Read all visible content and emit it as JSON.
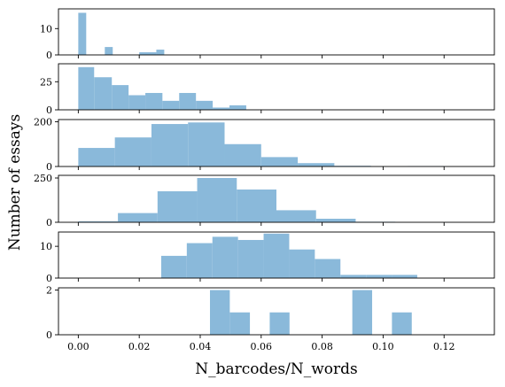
{
  "chart_data": {
    "type": "bar",
    "subtype": "stacked-histogram-panels",
    "xlabel": "N_barcodes/N_words",
    "ylabel": "Number of essays",
    "xlim": [
      -0.0065,
      0.1365
    ],
    "xticks": [
      0.0,
      0.02,
      0.04,
      0.06,
      0.08,
      0.1,
      0.12
    ],
    "xtick_labels": [
      "0.00",
      "0.02",
      "0.04",
      "0.06",
      "0.08",
      "0.10",
      "0.12"
    ],
    "bar_color": "#8ab9da",
    "grid": false,
    "panels": [
      {
        "ylim": [
          0,
          17.5
        ],
        "yticks": [
          0,
          10
        ],
        "bins": [
          {
            "x0": 0.0,
            "x1": 0.0026,
            "count": 16
          },
          {
            "x0": 0.0087,
            "x1": 0.0113,
            "count": 3
          },
          {
            "x0": 0.02,
            "x1": 0.0256,
            "count": 1
          },
          {
            "x0": 0.0256,
            "x1": 0.0282,
            "count": 2
          }
        ]
      },
      {
        "ylim": [
          0,
          41
        ],
        "yticks": [
          0,
          25
        ],
        "bins": [
          {
            "x0": 0.0,
            "x1": 0.0052,
            "count": 38
          },
          {
            "x0": 0.0052,
            "x1": 0.011,
            "count": 29
          },
          {
            "x0": 0.011,
            "x1": 0.0165,
            "count": 22
          },
          {
            "x0": 0.0165,
            "x1": 0.022,
            "count": 13
          },
          {
            "x0": 0.022,
            "x1": 0.0276,
            "count": 15
          },
          {
            "x0": 0.0276,
            "x1": 0.0331,
            "count": 8
          },
          {
            "x0": 0.0331,
            "x1": 0.0386,
            "count": 15
          },
          {
            "x0": 0.0386,
            "x1": 0.0441,
            "count": 8
          },
          {
            "x0": 0.0441,
            "x1": 0.0496,
            "count": 2
          },
          {
            "x0": 0.0496,
            "x1": 0.0551,
            "count": 4
          }
        ]
      },
      {
        "ylim": [
          0,
          210
        ],
        "yticks": [
          0,
          200
        ],
        "bins": [
          {
            "x0": 0.0,
            "x1": 0.012,
            "count": 83
          },
          {
            "x0": 0.012,
            "x1": 0.024,
            "count": 130
          },
          {
            "x0": 0.024,
            "x1": 0.036,
            "count": 190
          },
          {
            "x0": 0.036,
            "x1": 0.048,
            "count": 197
          },
          {
            "x0": 0.048,
            "x1": 0.06,
            "count": 100
          },
          {
            "x0": 0.06,
            "x1": 0.072,
            "count": 42
          },
          {
            "x0": 0.072,
            "x1": 0.084,
            "count": 15
          },
          {
            "x0": 0.084,
            "x1": 0.096,
            "count": 3
          },
          {
            "x0": 0.096,
            "x1": 0.108,
            "count": 0
          },
          {
            "x0": 0.108,
            "x1": 0.12,
            "count": 2
          }
        ]
      },
      {
        "ylim": [
          0,
          265
        ],
        "yticks": [
          0,
          250
        ],
        "bins": [
          {
            "x0": 0.0,
            "x1": 0.013,
            "count": 5
          },
          {
            "x0": 0.013,
            "x1": 0.026,
            "count": 52
          },
          {
            "x0": 0.026,
            "x1": 0.039,
            "count": 175
          },
          {
            "x0": 0.039,
            "x1": 0.052,
            "count": 250
          },
          {
            "x0": 0.052,
            "x1": 0.065,
            "count": 185
          },
          {
            "x0": 0.065,
            "x1": 0.078,
            "count": 68
          },
          {
            "x0": 0.078,
            "x1": 0.091,
            "count": 20
          },
          {
            "x0": 0.091,
            "x1": 0.104,
            "count": 3
          }
        ]
      },
      {
        "ylim": [
          0,
          14.5
        ],
        "yticks": [
          0,
          10
        ],
        "bins": [
          {
            "x0": 0.0272,
            "x1": 0.0356,
            "count": 7
          },
          {
            "x0": 0.0356,
            "x1": 0.044,
            "count": 11
          },
          {
            "x0": 0.044,
            "x1": 0.0524,
            "count": 13
          },
          {
            "x0": 0.0524,
            "x1": 0.0608,
            "count": 12
          },
          {
            "x0": 0.0608,
            "x1": 0.0692,
            "count": 14
          },
          {
            "x0": 0.0692,
            "x1": 0.0776,
            "count": 9
          },
          {
            "x0": 0.0776,
            "x1": 0.086,
            "count": 6
          },
          {
            "x0": 0.086,
            "x1": 0.0944,
            "count": 1
          },
          {
            "x0": 0.0944,
            "x1": 0.1028,
            "count": 1
          },
          {
            "x0": 0.1028,
            "x1": 0.1112,
            "count": 1
          }
        ]
      },
      {
        "ylim": [
          0,
          2.1
        ],
        "yticks": [
          0,
          2
        ],
        "bins": [
          {
            "x0": 0.0432,
            "x1": 0.0497,
            "count": 2
          },
          {
            "x0": 0.0497,
            "x1": 0.0563,
            "count": 1
          },
          {
            "x0": 0.0628,
            "x1": 0.0693,
            "count": 1
          },
          {
            "x0": 0.0899,
            "x1": 0.0964,
            "count": 2
          },
          {
            "x0": 0.1029,
            "x1": 0.1094,
            "count": 1
          }
        ]
      }
    ]
  }
}
